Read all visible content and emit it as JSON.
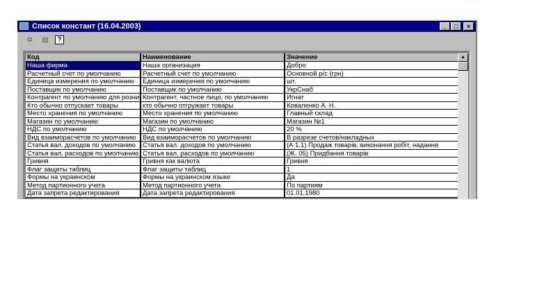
{
  "window": {
    "title": "Список констант (16.04.2003)",
    "minimize": "_",
    "maximize": "□",
    "close": "×"
  },
  "toolbar": {
    "icons": [
      "copy-icon",
      "properties-icon",
      "help-icon"
    ],
    "help_label": "?"
  },
  "table": {
    "headers": [
      "Код",
      "Наименование",
      "Значение"
    ],
    "selected_row": 0,
    "rows": [
      [
        "Наша фирма",
        "Наша организация",
        "Добро"
      ],
      [
        "Расчетный счет по умолчанию",
        "Расчетный счет по умолчанию",
        "Основной р/с (грн)"
      ],
      [
        "Единица измерения по умолчанию",
        "Единица измерения по умолчанию",
        "шт."
      ],
      [
        "Поставщик по умолчанию",
        "Поставщик по умолчанию",
        "УкрСнаб"
      ],
      [
        "Контрагент по умолчанию для розницы",
        "Контрагент, частное лицо, по умолчанию",
        "Игнат"
      ],
      [
        "Кто обычно отпускает товары",
        "кто обычно отгружает товары",
        "Коваленко А. Н."
      ],
      [
        "Место хранения по умолчанию",
        "Место хранения по умолчанию",
        "Главный склад"
      ],
      [
        "Магазин по умолчанию",
        "Магазин по умолчанию",
        "Магазин №1"
      ],
      [
        "НДС по умолчанию",
        "НДС по умолчанию",
        "20 %"
      ],
      [
        "Вид взаиморасчетов по умолчанию",
        "Вид взаиморасчетов по умолчанию",
        "В разрезе счетов/накладных"
      ],
      [
        "Статья вал. доходов по умолчанию",
        "Статья вал. доходов по умолчанию",
        "(А 1.1) Продаж товарів, виконання робіт, надання"
      ],
      [
        "Статья вал. расходов по умолчанию",
        "Статья вал. расходов по умолчанию",
        "(Ж. 05) Придбання товарів"
      ],
      [
        "Гривня",
        "Гривня как валюта",
        "Гривня"
      ],
      [
        "Флаг защиты таблиц",
        "Флаг защиты таблиц",
        "1"
      ],
      [
        "Формы на украинском",
        "Формы на украинском языке",
        "Да"
      ],
      [
        "Метод партионного учета",
        "Метод партионного учета",
        "По партиям"
      ],
      [
        "Дата запрета редактирования",
        "Дата запрета редактирования",
        "01.01.1980"
      ]
    ]
  }
}
